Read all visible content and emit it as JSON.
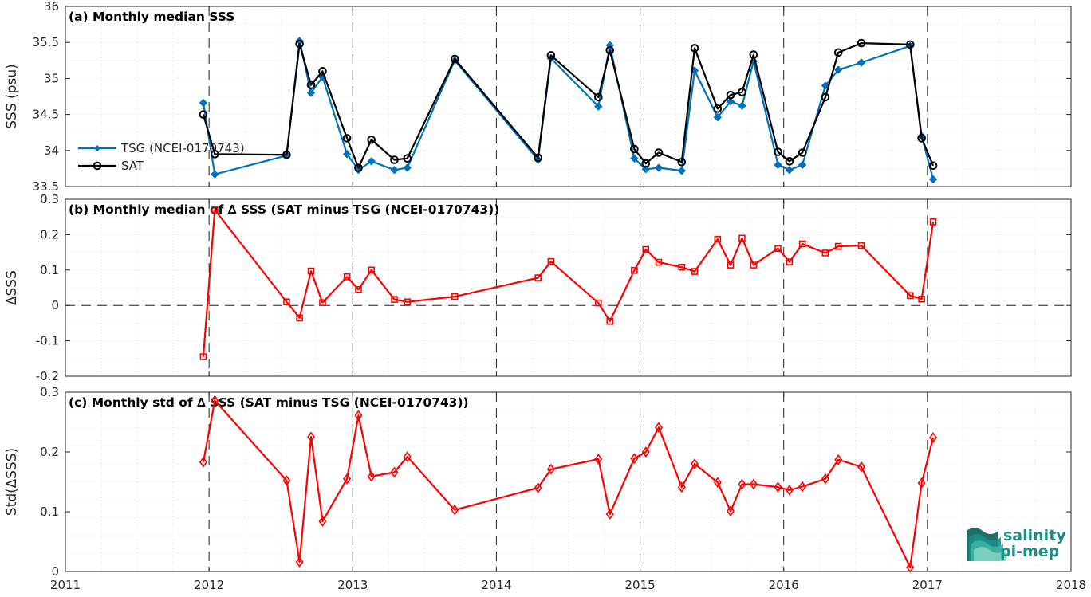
{
  "chart_data": [
    {
      "type": "line",
      "title": "(a) Monthly median SSS",
      "ylabel": "SSS (psu)",
      "xlim": [
        2011,
        2018
      ],
      "ylim": [
        33.5,
        36
      ],
      "yticks": [
        "33.5",
        "34",
        "34.5",
        "35",
        "35.5",
        "36"
      ],
      "grid": true,
      "legend_position": "left",
      "series": [
        {
          "name": "TSG (NCEI-0170743)",
          "color": "#0072BD",
          "marker": "dot",
          "x": [
            2011.96,
            2012.04,
            2012.54,
            2012.63,
            2012.71,
            2012.79,
            2012.96,
            2013.04,
            2013.13,
            2013.29,
            2013.38,
            2013.71,
            2014.29,
            2014.38,
            2014.71,
            2014.79,
            2014.96,
            2015.04,
            2015.13,
            2015.29,
            2015.38,
            2015.54,
            2015.63,
            2015.71,
            2015.79,
            2015.96,
            2016.04,
            2016.13,
            2016.29,
            2016.38,
            2016.54,
            2016.88,
            2016.96,
            2017.04
          ],
          "y": [
            34.66,
            33.67,
            33.93,
            35.52,
            34.8,
            35.02,
            33.95,
            33.73,
            33.85,
            33.73,
            33.76,
            35.25,
            33.87,
            35.28,
            34.61,
            35.46,
            33.89,
            33.74,
            33.76,
            33.72,
            35.11,
            34.46,
            34.68,
            34.62,
            35.24,
            33.8,
            33.73,
            33.8,
            34.9,
            35.12,
            35.22,
            35.45,
            34.2,
            33.6
          ]
        },
        {
          "name": "SAT",
          "color": "#000000",
          "marker": "circle",
          "x": [
            2011.96,
            2012.04,
            2012.54,
            2012.63,
            2012.71,
            2012.79,
            2012.96,
            2013.04,
            2013.13,
            2013.29,
            2013.38,
            2013.71,
            2014.29,
            2014.38,
            2014.71,
            2014.79,
            2014.96,
            2015.04,
            2015.13,
            2015.29,
            2015.38,
            2015.54,
            2015.63,
            2015.71,
            2015.79,
            2015.96,
            2016.04,
            2016.13,
            2016.29,
            2016.38,
            2016.54,
            2016.88,
            2016.96,
            2017.04
          ],
          "y": [
            34.5,
            33.95,
            33.94,
            35.48,
            34.91,
            35.1,
            34.17,
            33.76,
            34.15,
            33.87,
            33.89,
            35.27,
            33.9,
            35.32,
            34.74,
            35.39,
            34.02,
            33.82,
            33.97,
            33.84,
            35.42,
            34.58,
            34.77,
            34.81,
            35.33,
            33.98,
            33.85,
            33.97,
            34.74,
            35.36,
            35.49,
            35.47,
            34.17,
            33.79
          ]
        }
      ]
    },
    {
      "type": "line",
      "title": "(b) Monthly median of ∆ SSS (SAT minus TSG (NCEI-0170743))",
      "ylabel": "∆SSS",
      "xlim": [
        2011,
        2018
      ],
      "ylim": [
        -0.2,
        0.3
      ],
      "yticks": [
        "-0.2",
        "-0.1",
        "0",
        "0.1",
        "0.2",
        "0.3"
      ],
      "zero_line": true,
      "grid": true,
      "series": [
        {
          "color": "#FF0000",
          "marker": "square",
          "x": [
            2011.96,
            2012.04,
            2012.54,
            2012.63,
            2012.71,
            2012.79,
            2012.96,
            2013.04,
            2013.13,
            2013.29,
            2013.38,
            2013.71,
            2014.29,
            2014.38,
            2014.71,
            2014.79,
            2014.96,
            2015.04,
            2015.13,
            2015.29,
            2015.38,
            2015.54,
            2015.63,
            2015.71,
            2015.79,
            2015.96,
            2016.04,
            2016.13,
            2016.29,
            2016.38,
            2016.54,
            2016.88,
            2016.96,
            2017.04
          ],
          "y": [
            -0.145,
            0.27,
            0.01,
            -0.035,
            0.097,
            0.008,
            0.081,
            0.045,
            0.1,
            0.017,
            0.01,
            0.025,
            0.078,
            0.124,
            0.007,
            -0.045,
            0.099,
            0.158,
            0.122,
            0.108,
            0.096,
            0.187,
            0.114,
            0.19,
            0.114,
            0.161,
            0.123,
            0.174,
            0.148,
            0.167,
            0.169,
            0.028,
            0.018,
            0.236
          ]
        }
      ]
    },
    {
      "type": "line",
      "title": "(c) Monthly std of ∆ SSS (SAT minus TSG (NCEI-0170743))",
      "ylabel": "Std(∆SSS)",
      "xlim": [
        2011,
        2018
      ],
      "ylim": [
        0,
        0.3
      ],
      "yticks": [
        "0",
        "0.1",
        "0.2",
        "0.3"
      ],
      "xticks": [
        "2011",
        "2012",
        "2013",
        "2014",
        "2015",
        "2016",
        "2017",
        "2018"
      ],
      "grid": true,
      "series": [
        {
          "color": "#FF0000",
          "marker": "diamond",
          "x": [
            2011.96,
            2012.04,
            2012.54,
            2012.63,
            2012.71,
            2012.79,
            2012.96,
            2013.04,
            2013.13,
            2013.29,
            2013.38,
            2013.71,
            2014.29,
            2014.38,
            2014.71,
            2014.79,
            2014.96,
            2015.04,
            2015.13,
            2015.29,
            2015.38,
            2015.54,
            2015.63,
            2015.71,
            2015.79,
            2015.96,
            2016.04,
            2016.13,
            2016.29,
            2016.38,
            2016.54,
            2016.88,
            2016.96,
            2017.04
          ],
          "y": [
            0.183,
            0.286,
            0.152,
            0.016,
            0.225,
            0.084,
            0.155,
            0.261,
            0.159,
            0.166,
            0.192,
            0.103,
            0.14,
            0.171,
            0.188,
            0.096,
            0.189,
            0.2,
            0.241,
            0.141,
            0.18,
            0.149,
            0.101,
            0.146,
            0.146,
            0.141,
            0.136,
            0.142,
            0.155,
            0.187,
            0.175,
            0.007,
            0.148,
            0.224
          ]
        }
      ]
    }
  ],
  "year_markers": [
    2012,
    2013,
    2014,
    2015,
    2016,
    2017
  ],
  "logo": {
    "line1": "salinity",
    "line2": "pi-mep"
  }
}
